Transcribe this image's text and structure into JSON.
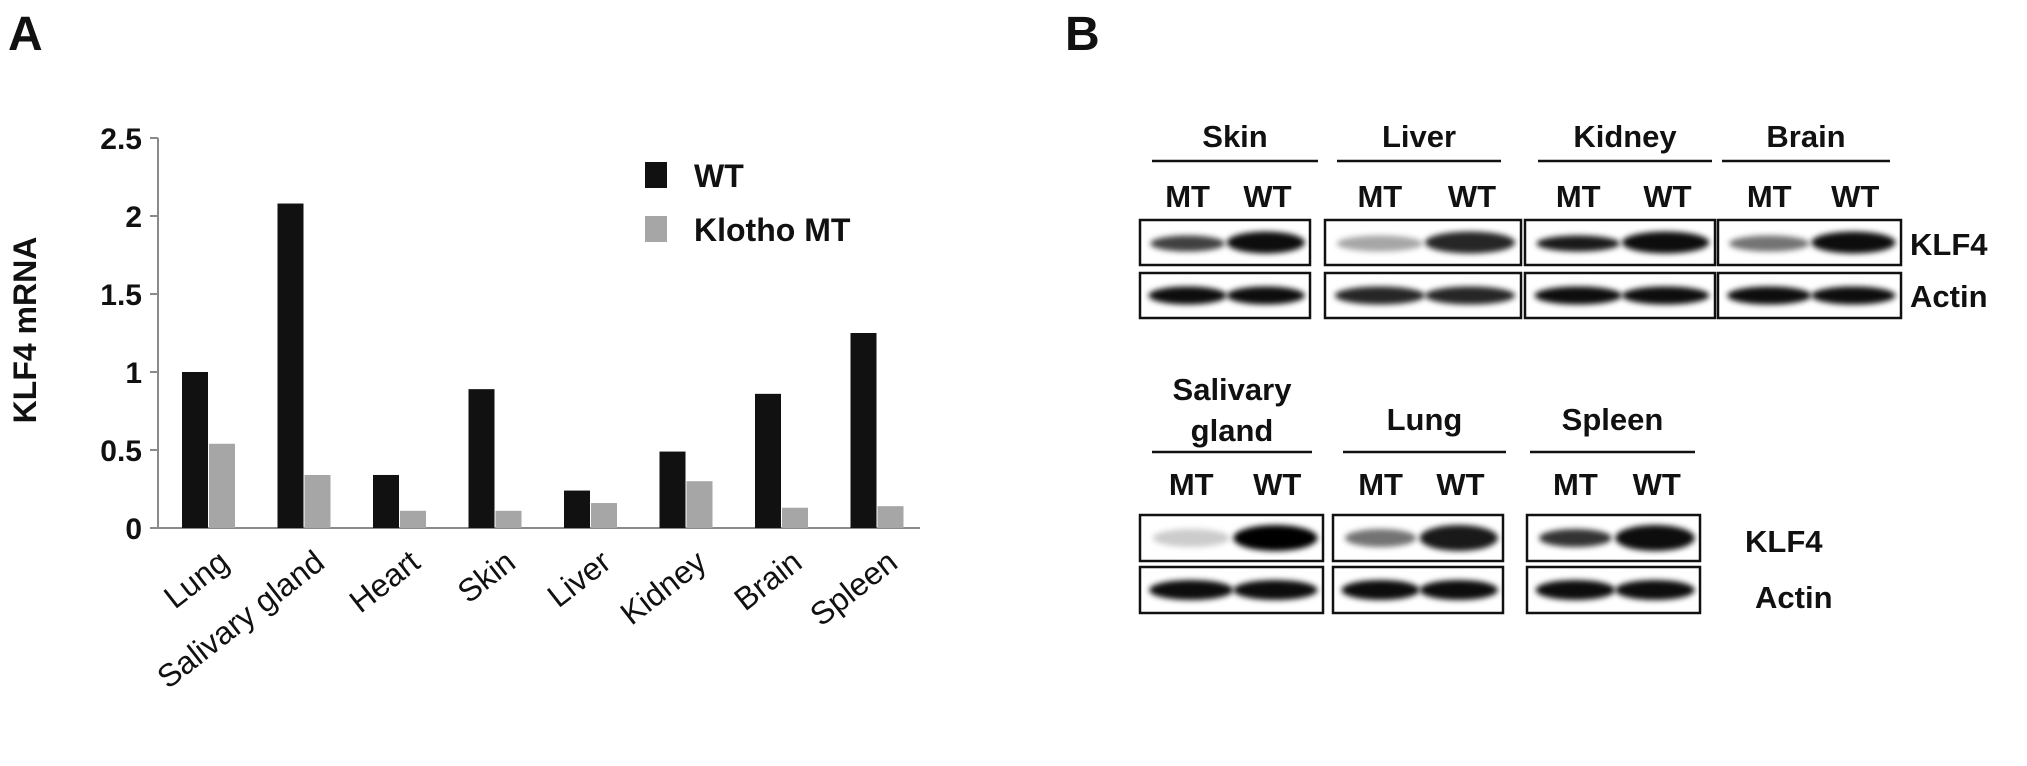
{
  "panel_a": {
    "letter": "A"
  },
  "panel_b": {
    "letter": "B"
  },
  "chart_data": {
    "type": "bar",
    "title": "",
    "xlabel": "",
    "ylabel": "KLF4 mRNA",
    "ylim": [
      0,
      2.5
    ],
    "yticks": [
      "0",
      "0.5",
      "1",
      "1.5",
      "2",
      "2.5"
    ],
    "categories": [
      "Lung",
      "Salivary gland",
      "Heart",
      "Skin",
      "Liver",
      "Kidney",
      "Brain",
      "Spleen"
    ],
    "series": [
      {
        "name": "WT",
        "color": "#111111",
        "values": [
          1.0,
          2.08,
          0.34,
          0.89,
          0.24,
          0.49,
          0.86,
          1.25
        ]
      },
      {
        "name": "Klotho MT",
        "color": "#a6a6a6",
        "values": [
          0.54,
          0.34,
          0.11,
          0.11,
          0.16,
          0.3,
          0.13,
          0.14
        ]
      }
    ],
    "legend_position": "top-right",
    "grid": false
  },
  "blots": {
    "lane_labels": [
      "MT",
      "WT"
    ],
    "row1": {
      "tissues": [
        "Skin",
        "Liver",
        "Kidney",
        "Brain"
      ],
      "proteins": [
        "KLF4",
        "Actin"
      ]
    },
    "row2": {
      "tissues": [
        "Salivary\ngland",
        "Lung",
        "Spleen"
      ],
      "proteins": [
        "KLF4",
        "Actin"
      ]
    }
  }
}
